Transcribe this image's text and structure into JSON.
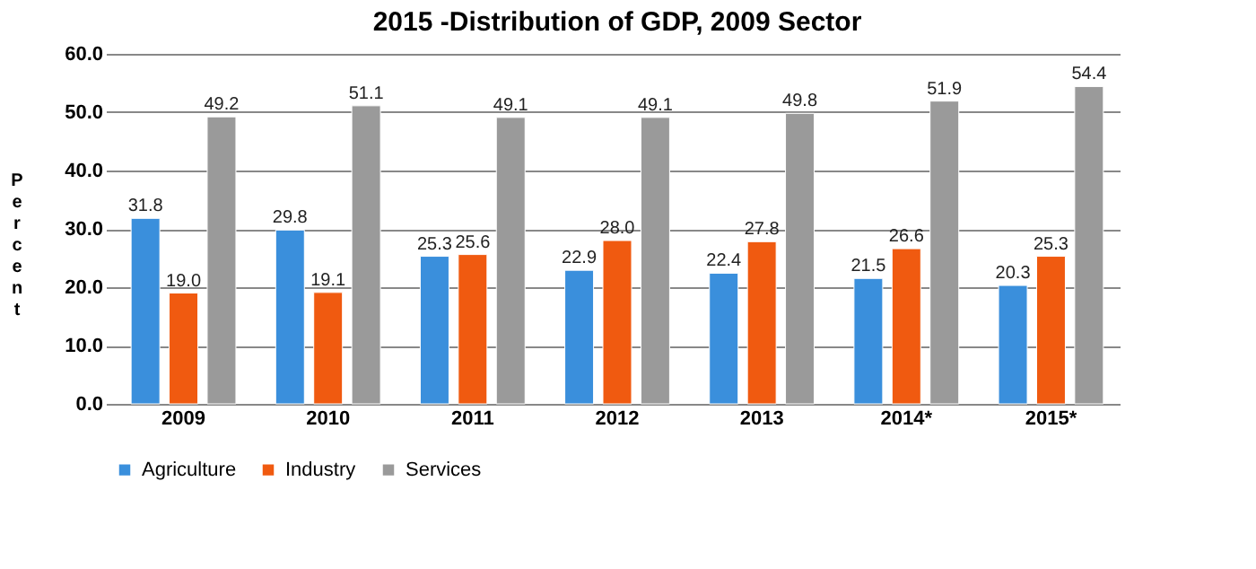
{
  "chart_data": {
    "type": "bar",
    "title": "2015 -Distribution of GDP, 2009 Sector",
    "ylabel": "Percent",
    "categories": [
      "2009",
      "2010",
      "2011",
      "2012",
      "2013",
      "2014*",
      "2015*"
    ],
    "series": [
      {
        "name": "Agriculture",
        "color": "#3a8fdc",
        "values": [
          31.8,
          29.8,
          25.3,
          22.9,
          22.4,
          21.5,
          20.3
        ],
        "value_labels": [
          "31.8",
          "29.8",
          "25.3",
          "22.9",
          "22.4",
          "21.5",
          "20.3"
        ]
      },
      {
        "name": "Industry",
        "color": "#f05a10",
        "values": [
          19.0,
          19.1,
          25.6,
          28.0,
          27.8,
          26.6,
          25.3
        ],
        "value_labels": [
          "19.0",
          "19.1",
          "25.6",
          "28.0",
          "27.8",
          "26.6",
          "25.3"
        ]
      },
      {
        "name": "Services",
        "color": "#9a9a9a",
        "values": [
          49.2,
          51.1,
          49.1,
          49.1,
          49.8,
          51.9,
          54.4
        ],
        "value_labels": [
          "49.2",
          "51.1",
          "49.1",
          "49.1",
          "49.8",
          "51.9",
          "54.4"
        ]
      }
    ],
    "ylim": [
      0,
      60
    ],
    "yticks": [
      {
        "value": 0,
        "label": "0.0"
      },
      {
        "value": 10,
        "label": "10.0"
      },
      {
        "value": 20,
        "label": "20.0"
      },
      {
        "value": 30,
        "label": "30.0"
      },
      {
        "value": 40,
        "label": "40.0"
      },
      {
        "value": 50,
        "label": "50.0"
      },
      {
        "value": 60,
        "label": "60.0"
      }
    ],
    "grid": "y",
    "legend": "bottom"
  }
}
